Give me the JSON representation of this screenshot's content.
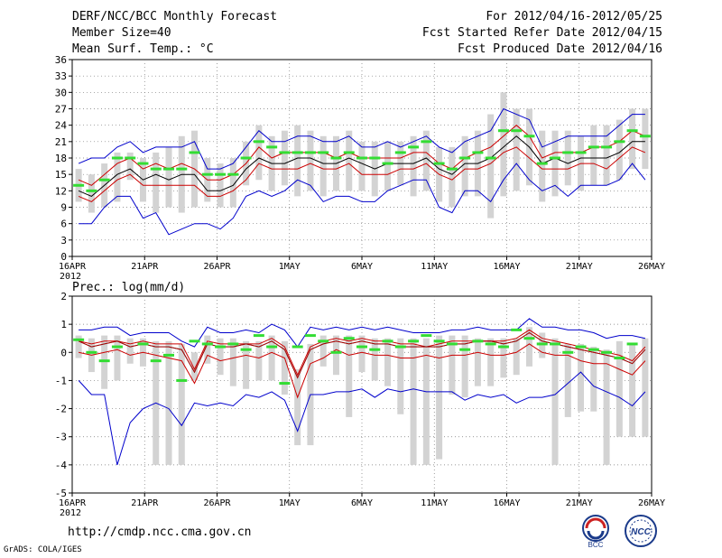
{
  "header": {
    "title": "DERF/NCC/BCC Monthly Forecast",
    "member_size": "Member Size=40",
    "variable": "Mean Surf. Temp.: °C",
    "period": "For 2012/04/16-2012/05/25",
    "started": "Fcst Started Refer Date 2012/04/15",
    "produced": "Fcst Produced Date 2012/04/16"
  },
  "footer": {
    "url": "http://cmdp.ncc.cma.gov.cn",
    "credit": "GrADS: COLA/IGES",
    "logo_bcc": "BCC",
    "logo_ncc": "NCC"
  },
  "colors": {
    "max_line": "#0000cc",
    "min_line": "#0000cc",
    "upper": "#cc0000",
    "lower": "#cc0000",
    "mean": "#000000",
    "observed": "#33dd33",
    "bar": "#d3d3d3",
    "grid": "#777777"
  },
  "chart_data": [
    {
      "type": "line",
      "title": "Mean Surf. Temp.: °C",
      "ylim": [
        0,
        36
      ],
      "yticks": [
        0,
        3,
        6,
        9,
        12,
        15,
        18,
        21,
        24,
        27,
        30,
        33,
        36
      ],
      "xtick_labels": [
        "16APR",
        "21APR",
        "26APR",
        "1MAY",
        "6MAY",
        "11MAY",
        "16MAY",
        "21MAY",
        "26MAY"
      ],
      "x_sublabel": "2012",
      "days": 40,
      "series": [
        {
          "name": "max",
          "values": [
            17,
            18,
            18,
            20,
            21,
            19,
            20,
            20,
            20,
            21,
            16,
            16,
            17,
            20,
            23,
            21,
            21,
            22,
            22,
            21,
            21,
            22,
            20,
            20,
            21,
            20,
            21,
            22,
            20,
            19,
            21,
            22,
            23,
            27,
            26,
            25,
            20,
            21,
            22,
            22,
            22,
            22,
            24,
            26,
            26
          ]
        },
        {
          "name": "upper",
          "values": [
            14,
            13,
            15,
            17,
            18,
            16,
            17,
            16,
            17,
            16,
            14,
            14,
            15,
            17,
            20,
            18,
            19,
            19,
            19,
            19,
            18,
            19,
            18,
            18,
            18,
            18,
            19,
            19,
            17,
            16,
            18,
            19,
            20,
            22,
            24,
            22,
            18,
            19,
            19,
            19,
            20,
            20,
            21,
            23,
            22
          ]
        },
        {
          "name": "mean",
          "values": [
            12,
            11,
            13,
            15,
            16,
            14,
            15,
            14,
            15,
            15,
            12,
            12,
            13,
            16,
            18,
            17,
            17,
            18,
            18,
            17,
            17,
            18,
            17,
            16,
            17,
            17,
            17,
            18,
            16,
            15,
            17,
            17,
            18,
            20,
            22,
            20,
            17,
            18,
            17,
            18,
            18,
            18,
            19,
            21,
            21
          ]
        },
        {
          "name": "lower",
          "values": [
            11,
            10,
            12,
            14,
            15,
            13,
            13,
            13,
            13,
            13,
            11,
            11,
            12,
            14,
            17,
            16,
            16,
            16,
            17,
            16,
            16,
            17,
            15,
            15,
            15,
            16,
            16,
            17,
            15,
            14,
            16,
            16,
            17,
            19,
            20,
            18,
            16,
            16,
            16,
            17,
            17,
            16,
            18,
            20,
            19
          ]
        },
        {
          "name": "min",
          "values": [
            6,
            6,
            9,
            11,
            11,
            7,
            8,
            4,
            5,
            6,
            6,
            5,
            7,
            11,
            12,
            11,
            12,
            14,
            13,
            10,
            11,
            11,
            10,
            10,
            12,
            13,
            14,
            14,
            9,
            8,
            12,
            12,
            10,
            14,
            17,
            14,
            12,
            13,
            11,
            13,
            13,
            13,
            14,
            17,
            14
          ]
        }
      ],
      "bars": [
        [
          10,
          16
        ],
        [
          8,
          15
        ],
        [
          9,
          17
        ],
        [
          10,
          19
        ],
        [
          14,
          19
        ],
        [
          10,
          18
        ],
        [
          8,
          19
        ],
        [
          9,
          20
        ],
        [
          8,
          22
        ],
        [
          9,
          23
        ],
        [
          10,
          18
        ],
        [
          9,
          17
        ],
        [
          9,
          18
        ],
        [
          13,
          21
        ],
        [
          14,
          24
        ],
        [
          12,
          22
        ],
        [
          13,
          23
        ],
        [
          11,
          24
        ],
        [
          12,
          23
        ],
        [
          11,
          22
        ],
        [
          12,
          22
        ],
        [
          12,
          23
        ],
        [
          12,
          21
        ],
        [
          11,
          21
        ],
        [
          12,
          21
        ],
        [
          13,
          21
        ],
        [
          11,
          22
        ],
        [
          12,
          23
        ],
        [
          10,
          20
        ],
        [
          9,
          20
        ],
        [
          11,
          22
        ],
        [
          11,
          23
        ],
        [
          7,
          26
        ],
        [
          11,
          30
        ],
        [
          12,
          27
        ],
        [
          13,
          27
        ],
        [
          10,
          23
        ],
        [
          11,
          23
        ],
        [
          13,
          23
        ],
        [
          12,
          22
        ],
        [
          13,
          24
        ],
        [
          13,
          24
        ],
        [
          14,
          25
        ],
        [
          16,
          27
        ],
        [
          16,
          27
        ]
      ],
      "observed": [
        13,
        12,
        14,
        18,
        18,
        17,
        16,
        16,
        16,
        19,
        15,
        15,
        15,
        18,
        21,
        20,
        19,
        19,
        19,
        19,
        18,
        19,
        18,
        18,
        17,
        19,
        20,
        21,
        17,
        16,
        18,
        19,
        18,
        23,
        23,
        22,
        17,
        18,
        19,
        19,
        20,
        20,
        21,
        23,
        22
      ]
    },
    {
      "type": "line",
      "title": "Prec.: log(mm/d)",
      "ylim": [
        -5,
        2
      ],
      "yticks": [
        -5,
        -4,
        -3,
        -2,
        -1,
        0,
        1,
        2
      ],
      "xtick_labels": [
        "16APR",
        "21APR",
        "26APR",
        "1MAY",
        "6MAY",
        "11MAY",
        "16MAY",
        "21MAY",
        "26MAY"
      ],
      "x_sublabel": "2012",
      "days": 40,
      "series": [
        {
          "name": "max",
          "values": [
            0.8,
            0.8,
            0.9,
            0.9,
            0.6,
            0.7,
            0.7,
            0.7,
            0.4,
            0.2,
            0.9,
            0.7,
            0.7,
            0.8,
            0.7,
            1.0,
            0.8,
            0.2,
            0.9,
            0.8,
            0.9,
            0.8,
            0.9,
            0.8,
            0.9,
            0.8,
            0.7,
            0.7,
            0.7,
            0.8,
            0.8,
            0.9,
            0.8,
            0.8,
            0.8,
            1.2,
            0.9,
            0.9,
            0.8,
            0.8,
            0.7,
            0.5,
            0.6,
            0.6,
            0.5
          ]
        },
        {
          "name": "upper",
          "values": [
            0.4,
            0.3,
            0.4,
            0.4,
            0.3,
            0.4,
            0.3,
            0.3,
            0.3,
            -0.6,
            0.4,
            0.3,
            0.3,
            0.3,
            0.3,
            0.5,
            0.2,
            -0.8,
            0.2,
            0.4,
            0.5,
            0.4,
            0.5,
            0.4,
            0.4,
            0.3,
            0.3,
            0.2,
            0.3,
            0.4,
            0.4,
            0.4,
            0.4,
            0.4,
            0.5,
            0.8,
            0.5,
            0.4,
            0.3,
            0.2,
            0.1,
            0.0,
            -0.1,
            -0.3,
            0.2
          ]
        },
        {
          "name": "mean",
          "values": [
            0.4,
            0.2,
            0.3,
            0.4,
            0.2,
            0.3,
            0.2,
            0.2,
            0.1,
            -0.7,
            0.3,
            0.2,
            0.2,
            0.3,
            0.2,
            0.4,
            0.1,
            -0.9,
            0.1,
            0.3,
            0.4,
            0.3,
            0.4,
            0.3,
            0.3,
            0.2,
            0.2,
            0.2,
            0.2,
            0.3,
            0.3,
            0.4,
            0.4,
            0.3,
            0.4,
            0.7,
            0.4,
            0.3,
            0.2,
            0.1,
            0.0,
            -0.1,
            -0.2,
            -0.4,
            0.1
          ]
        },
        {
          "name": "lower",
          "values": [
            0.0,
            -0.1,
            0.0,
            0.1,
            -0.1,
            0.0,
            -0.1,
            -0.2,
            -0.3,
            -1.1,
            -0.1,
            -0.3,
            -0.2,
            -0.1,
            -0.2,
            0.0,
            -0.2,
            -1.6,
            -0.4,
            -0.2,
            0.1,
            -0.1,
            0.0,
            -0.1,
            -0.1,
            -0.2,
            -0.2,
            -0.1,
            -0.2,
            -0.1,
            -0.1,
            0.0,
            -0.1,
            -0.1,
            0.0,
            0.3,
            0.0,
            -0.1,
            -0.1,
            -0.3,
            -0.4,
            -0.4,
            -0.6,
            -0.8,
            -0.3
          ]
        },
        {
          "name": "min",
          "values": [
            -1.0,
            -1.5,
            -1.5,
            -4.0,
            -2.5,
            -2.0,
            -1.8,
            -2.0,
            -2.6,
            -1.8,
            -1.9,
            -1.8,
            -1.9,
            -1.5,
            -1.6,
            -1.4,
            -1.7,
            -2.8,
            -1.5,
            -1.5,
            -1.4,
            -1.4,
            -1.3,
            -1.6,
            -1.3,
            -1.4,
            -1.3,
            -1.4,
            -1.4,
            -1.4,
            -1.7,
            -1.5,
            -1.6,
            -1.5,
            -1.8,
            -1.6,
            -1.6,
            -1.5,
            -1.1,
            -0.7,
            -1.2,
            -1.4,
            -1.6,
            -1.9,
            -1.4
          ]
        },
        {
          "name": "trend",
          "values": [
            0.4,
            0.2,
            0.3,
            0.4,
            0.2,
            0.3,
            0.2,
            0.2,
            0.1,
            -0.7,
            0.3,
            0.2,
            0.2,
            0.3,
            0.2,
            0.4,
            0.1,
            -0.9,
            0.1,
            0.3,
            0.4,
            0.3,
            0.4,
            0.3,
            0.3,
            0.2,
            0.2,
            0.2,
            0.2,
            0.3,
            0.3,
            0.4,
            0.4,
            0.3,
            0.4,
            0.7,
            0.4,
            0.3,
            0.2,
            0.1,
            0.0,
            -0.1,
            -0.2,
            -0.4,
            0.1
          ]
        }
      ],
      "bars": [
        [
          -0.2,
          0.6
        ],
        [
          -0.7,
          0.5
        ],
        [
          -1.3,
          0.6
        ],
        [
          -1.0,
          0.6
        ],
        [
          -0.4,
          0.5
        ],
        [
          -0.5,
          0.5
        ],
        [
          -4.0,
          0.4
        ],
        [
          -4.0,
          0.4
        ],
        [
          -4.0,
          0.3
        ],
        [
          -1.0,
          0.0
        ],
        [
          -0.4,
          0.6
        ],
        [
          -0.8,
          0.5
        ],
        [
          -1.2,
          0.5
        ],
        [
          -1.3,
          0.4
        ],
        [
          -1.0,
          0.4
        ],
        [
          -1.0,
          0.6
        ],
        [
          -1.5,
          0.4
        ],
        [
          -3.3,
          -0.6
        ],
        [
          -3.3,
          0.3
        ],
        [
          -0.5,
          0.6
        ],
        [
          -0.8,
          0.6
        ],
        [
          -2.3,
          0.6
        ],
        [
          -0.7,
          0.6
        ],
        [
          -1.0,
          0.5
        ],
        [
          -1.2,
          0.5
        ],
        [
          -2.2,
          0.5
        ],
        [
          -4.0,
          0.5
        ],
        [
          -4.0,
          0.5
        ],
        [
          -3.8,
          0.6
        ],
        [
          -1.5,
          0.6
        ],
        [
          -1.6,
          0.6
        ],
        [
          -1.2,
          0.5
        ],
        [
          -1.2,
          0.5
        ],
        [
          -0.9,
          0.5
        ],
        [
          -0.8,
          0.5
        ],
        [
          -0.5,
          0.9
        ],
        [
          -0.2,
          0.7
        ],
        [
          -4.0,
          0.5
        ],
        [
          -2.3,
          0.3
        ],
        [
          -2.1,
          0.3
        ],
        [
          -2.1,
          0.2
        ],
        [
          -4.0,
          0.1
        ],
        [
          -3.0,
          0.4
        ],
        [
          -3.0,
          0.3
        ],
        [
          -3.0,
          0.5
        ]
      ],
      "observed": [
        0.45,
        0.0,
        -0.3,
        0.2,
        null,
        0.3,
        -0.3,
        -0.1,
        -1.0,
        0.4,
        0.3,
        0.2,
        0.3,
        0.1,
        0.6,
        0.2,
        -1.1,
        0.2,
        0.6,
        0.4,
        0.0,
        0.5,
        0.2,
        0.1,
        0.4,
        0.2,
        0.4,
        0.6,
        0.4,
        0.3,
        0.1,
        0.4,
        0.3,
        0.2,
        0.8,
        0.5,
        0.3,
        0.3,
        0.0,
        0.2,
        0.1,
        0.0,
        -0.2,
        0.3,
        null
      ]
    }
  ]
}
